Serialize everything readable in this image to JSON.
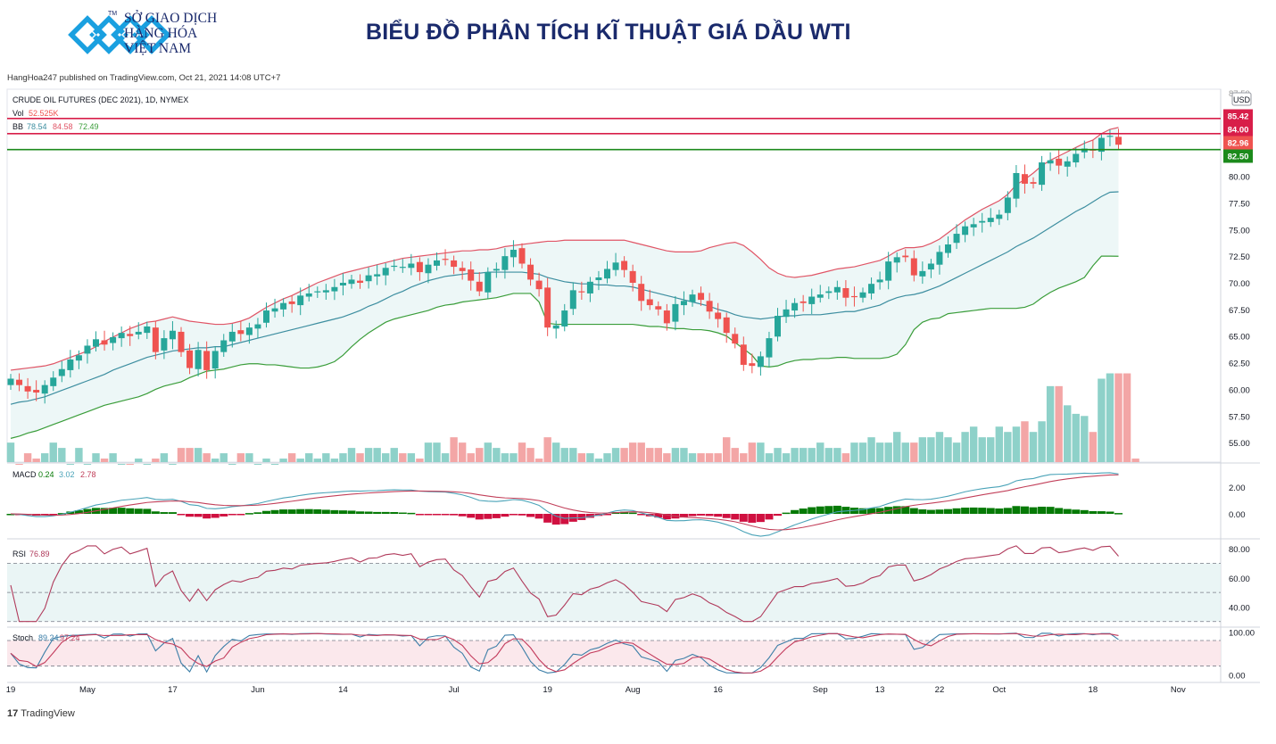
{
  "brand": {
    "line1": "SỞ GIAO DỊCH",
    "line2": "HÀNG HÓA",
    "line3": "VIỆT NAM",
    "tm": "TM",
    "color": "#1a2a6c",
    "logo_color": "#1aa0e0"
  },
  "page_title": "BIỂU ĐỒ PHÂN TÍCH KĨ THUẬT GIÁ DẦU WTI",
  "published": "HangHoa247 published on TradingView.com, Oct 21, 2021 14:08 UTC+7",
  "footer": "TradingView",
  "footer_mark": "17",
  "chart_data": {
    "type": "candlestick",
    "symbol": "CRUDE OIL FUTURES (DEC 2021), 1D, NYMEX",
    "vol_label": "Vol",
    "vol_value": "52.525K",
    "bb_label": "BB",
    "bb_values": [
      "78.54",
      "84.58",
      "72.49"
    ],
    "currency": "USD",
    "x_ticks": [
      {
        "label": "19",
        "i": 0
      },
      {
        "label": "May",
        "i": 9
      },
      {
        "label": "17",
        "i": 19
      },
      {
        "label": "Jun",
        "i": 29
      },
      {
        "label": "14",
        "i": 39
      },
      {
        "label": "Jul",
        "i": 52
      },
      {
        "label": "19",
        "i": 63
      },
      {
        "label": "Aug",
        "i": 73
      },
      {
        "label": "16",
        "i": 83
      },
      {
        "label": "Sep",
        "i": 95
      },
      {
        "label": "13",
        "i": 102
      },
      {
        "label": "22",
        "i": 109
      },
      {
        "label": "Oct",
        "i": 116
      },
      {
        "label": "18",
        "i": 127
      },
      {
        "label": "Nov",
        "i": 137
      }
    ],
    "price_axis": {
      "min": 52.5,
      "max": 87.5,
      "ticks": [
        "55.00",
        "57.50",
        "60.00",
        "62.50",
        "65.00",
        "67.50",
        "70.00",
        "72.50",
        "75.00",
        "77.50",
        "80.00"
      ],
      "top_tick": "87.50"
    },
    "levels": [
      {
        "label": "85.42",
        "value": 85.42,
        "color": "#d81e49"
      },
      {
        "label": "84.00",
        "value": 84.0,
        "color": "#d81e49"
      },
      {
        "label": "82.50",
        "value": 82.5,
        "color": "#1b8a1b"
      }
    ],
    "last_price": {
      "label": "82.96",
      "value": 82.96,
      "color": "#ef5350"
    },
    "closes": [
      61.0,
      60.4,
      59.8,
      59.7,
      60.4,
      61.1,
      61.9,
      62.8,
      63.2,
      64.1,
      64.7,
      64.2,
      64.9,
      65.3,
      65.0,
      65.4,
      65.9,
      63.5,
      64.8,
      65.5,
      63.5,
      62.0,
      63.7,
      61.8,
      63.6,
      64.6,
      65.4,
      65.2,
      65.8,
      66.1,
      67.4,
      67.6,
      68.1,
      68.0,
      68.8,
      69.0,
      69.2,
      69.3,
      69.6,
      70.0,
      70.3,
      70.0,
      70.7,
      70.8,
      71.4,
      71.6,
      71.5,
      71.8,
      71.0,
      71.7,
      72.1,
      72.2,
      71.5,
      71.1,
      70.2,
      69.2,
      71.0,
      71.3,
      72.5,
      73.1,
      71.8,
      70.3,
      69.4,
      65.8,
      66.0,
      67.4,
      69.3,
      69.1,
      70.1,
      70.5,
      71.3,
      71.9,
      71.2,
      70.0,
      68.3,
      67.9,
      67.5,
      66.2,
      68.0,
      68.3,
      68.9,
      68.4,
      67.3,
      66.6,
      65.3,
      64.3,
      62.3,
      62.2,
      63.1,
      64.8,
      66.9,
      67.5,
      68.1,
      68.1,
      68.7,
      68.9,
      69.2,
      69.6,
      68.6,
      68.7,
      69.1,
      69.9,
      70.3,
      72.0,
      72.4,
      72.4,
      70.7,
      71.1,
      71.8,
      72.9,
      73.6,
      74.6,
      75.3,
      75.5,
      75.8,
      76.1,
      76.4,
      78.0,
      80.3,
      79.3,
      79.3,
      81.3,
      81.5,
      81.0,
      81.4,
      82.1,
      82.6,
      82.4,
      83.6,
      83.8,
      82.96
    ],
    "volumes": [
      55.0,
      53.0,
      54.0,
      53.5,
      54.0,
      55.0,
      54.5,
      53.0,
      54.5,
      53.0,
      54.0,
      53.5,
      54.0,
      53.0,
      53.0,
      53.5,
      53.0,
      53.5,
      54.0,
      53.0,
      54.5,
      54.5,
      54.5,
      54.0,
      53.5,
      54.0,
      53.0,
      54.0,
      54.0,
      53.0,
      53.5,
      53.0,
      53.5,
      54.0,
      53.5,
      54.0,
      53.5,
      54.0,
      53.5,
      54.0,
      54.5,
      54.0,
      54.5,
      54.5,
      54.0,
      54.5,
      54.0,
      54.0,
      53.5,
      55.0,
      55.0,
      54.0,
      55.5,
      55.0,
      54.0,
      54.5,
      55.0,
      54.5,
      54.0,
      54.0,
      55.0,
      54.5,
      53.5,
      55.5,
      55.0,
      54.5,
      54.5,
      54.0,
      54.0,
      53.5,
      54.0,
      54.5,
      54.5,
      55.0,
      55.0,
      54.5,
      54.5,
      54.0,
      54.5,
      54.5,
      54.0,
      54.0,
      54.0,
      54.0,
      55.5,
      54.5,
      54.0,
      55.0,
      55.0,
      54.0,
      54.5,
      54.0,
      54.5,
      54.5,
      54.5,
      55.0,
      54.5,
      54.5,
      54.0,
      55.0,
      55.0,
      55.5,
      55.0,
      55.0,
      56.0,
      55.0,
      55.0,
      55.5,
      55.5,
      56.0,
      55.5,
      55.0,
      56.0,
      56.5,
      55.5,
      55.5,
      56.5,
      56.0,
      56.5,
      57.0,
      56.0,
      57.0,
      60.3,
      60.3,
      58.5,
      57.7,
      57.5,
      56.0,
      61.0,
      61.5,
      61.5,
      61.5,
      53.5
    ],
    "bb_upper": [
      61.8,
      61.9,
      62.0,
      62.1,
      62.2,
      62.4,
      62.7,
      63.0,
      63.3,
      63.6,
      64.0,
      64.5,
      64.9,
      65.3,
      65.7,
      66.0,
      66.3,
      66.4,
      66.6,
      66.8,
      66.6,
      66.4,
      66.3,
      66.2,
      66.1,
      66.1,
      66.2,
      66.4,
      66.7,
      67.2,
      67.7,
      68.1,
      68.5,
      68.8,
      69.2,
      69.6,
      70.0,
      70.3,
      70.6,
      70.9,
      71.1,
      71.3,
      71.5,
      71.7,
      71.9,
      72.1,
      72.3,
      72.4,
      72.5,
      72.6,
      72.7,
      72.8,
      72.9,
      73.0,
      73.0,
      73.1,
      73.1,
      73.2,
      73.4,
      73.5,
      73.6,
      73.7,
      73.8,
      73.9,
      73.9,
      74.0,
      74.0,
      74.0,
      74.0,
      74.0,
      74.0,
      74.0,
      74.0,
      73.8,
      73.6,
      73.4,
      73.2,
      73.0,
      72.9,
      72.9,
      72.9,
      73.0,
      73.3,
      73.5,
      73.7,
      73.8,
      73.5,
      72.9,
      72.2,
      71.4,
      70.9,
      70.6,
      70.5,
      70.6,
      70.7,
      70.9,
      71.1,
      71.3,
      71.4,
      71.5,
      71.7,
      71.9,
      72.1,
      72.5,
      73.0,
      73.3,
      73.3,
      73.4,
      73.7,
      74.1,
      74.7,
      75.3,
      75.9,
      76.4,
      76.9,
      77.3,
      77.7,
      78.3,
      79.2,
      79.7,
      80.3,
      81.0,
      81.5,
      81.9,
      82.3,
      82.7,
      83.1,
      83.4,
      84.0,
      84.4,
      84.58
    ],
    "bb_middle": [
      58.6,
      58.8,
      58.9,
      59.1,
      59.3,
      59.6,
      59.9,
      60.2,
      60.5,
      60.8,
      61.1,
      61.4,
      61.8,
      62.1,
      62.4,
      62.7,
      63.0,
      63.2,
      63.4,
      63.6,
      63.7,
      63.8,
      63.9,
      63.9,
      64.0,
      64.0,
      64.2,
      64.4,
      64.6,
      64.8,
      65.0,
      65.2,
      65.4,
      65.6,
      65.8,
      66.0,
      66.2,
      66.4,
      66.6,
      66.8,
      67.1,
      67.4,
      67.8,
      68.1,
      68.5,
      68.9,
      69.2,
      69.6,
      69.9,
      70.2,
      70.4,
      70.6,
      70.7,
      70.8,
      70.9,
      70.9,
      71.0,
      71.0,
      71.0,
      71.0,
      71.0,
      70.9,
      70.8,
      70.5,
      70.3,
      70.1,
      70.0,
      69.9,
      69.9,
      69.8,
      69.8,
      69.7,
      69.7,
      69.6,
      69.4,
      69.2,
      69.0,
      68.8,
      68.6,
      68.4,
      68.2,
      68.0,
      67.8,
      67.5,
      67.3,
      67.0,
      66.8,
      66.7,
      66.6,
      66.7,
      66.8,
      66.9,
      66.9,
      67.0,
      67.0,
      67.0,
      67.1,
      67.2,
      67.3,
      67.3,
      67.5,
      67.7,
      67.9,
      68.3,
      68.6,
      68.8,
      68.9,
      69.1,
      69.4,
      69.7,
      70.1,
      70.5,
      70.9,
      71.3,
      71.7,
      72.1,
      72.5,
      72.9,
      73.4,
      73.8,
      74.2,
      74.7,
      75.2,
      75.7,
      76.2,
      76.7,
      77.1,
      77.6,
      78.1,
      78.5,
      78.54
    ],
    "bb_lower": [
      55.4,
      55.6,
      55.9,
      56.1,
      56.4,
      56.7,
      57.0,
      57.3,
      57.6,
      57.9,
      58.2,
      58.5,
      58.7,
      58.9,
      59.1,
      59.3,
      59.6,
      60.0,
      60.3,
      60.5,
      60.7,
      61.1,
      61.4,
      61.7,
      61.8,
      61.9,
      62.1,
      62.3,
      62.4,
      62.4,
      62.3,
      62.3,
      62.2,
      62.1,
      62.0,
      62.0,
      62.1,
      62.3,
      62.6,
      63.2,
      64.0,
      64.7,
      65.3,
      65.8,
      66.3,
      66.6,
      66.8,
      67.0,
      67.2,
      67.4,
      67.7,
      67.9,
      68.0,
      68.2,
      68.3,
      68.4,
      68.5,
      68.6,
      68.8,
      69.0,
      69.0,
      69.0,
      68.2,
      66.2,
      66.1,
      66.1,
      66.1,
      66.1,
      66.1,
      66.1,
      66.1,
      66.1,
      66.1,
      66.1,
      66.0,
      65.9,
      65.9,
      65.8,
      65.7,
      65.7,
      65.6,
      65.6,
      65.5,
      65.3,
      65.0,
      64.4,
      63.8,
      63.2,
      62.2,
      62.1,
      62.2,
      62.5,
      62.7,
      62.8,
      62.8,
      62.9,
      62.9,
      63.0,
      63.0,
      62.9,
      62.9,
      62.9,
      62.9,
      63.0,
      63.3,
      64.2,
      65.6,
      66.3,
      66.6,
      66.7,
      67.1,
      67.2,
      67.3,
      67.4,
      67.5,
      67.6,
      67.6,
      67.6,
      67.6,
      67.7,
      68.0,
      68.6,
      69.1,
      69.5,
      69.8,
      70.1,
      70.5,
      71.6,
      72.5,
      72.5,
      72.49
    ],
    "macd": {
      "label": "MACD",
      "values": [
        "0.24",
        "3.02",
        "2.78"
      ],
      "ticks": [
        "2.00",
        "0.00"
      ],
      "min": -1.6,
      "max": 3.6
    },
    "rsi": {
      "label": "RSI",
      "value": "76.89",
      "ticks": [
        "80.00",
        "60.00",
        "40.00"
      ],
      "min": 28,
      "max": 85,
      "upper_band": 70,
      "lower_band": 30
    },
    "stoch": {
      "label": "Stoch",
      "values": [
        "89.24",
        "97.24"
      ],
      "ticks": [
        "100.00",
        "0.00"
      ],
      "min": -12,
      "max": 105,
      "upper_band": 80,
      "lower_band": 20
    }
  }
}
